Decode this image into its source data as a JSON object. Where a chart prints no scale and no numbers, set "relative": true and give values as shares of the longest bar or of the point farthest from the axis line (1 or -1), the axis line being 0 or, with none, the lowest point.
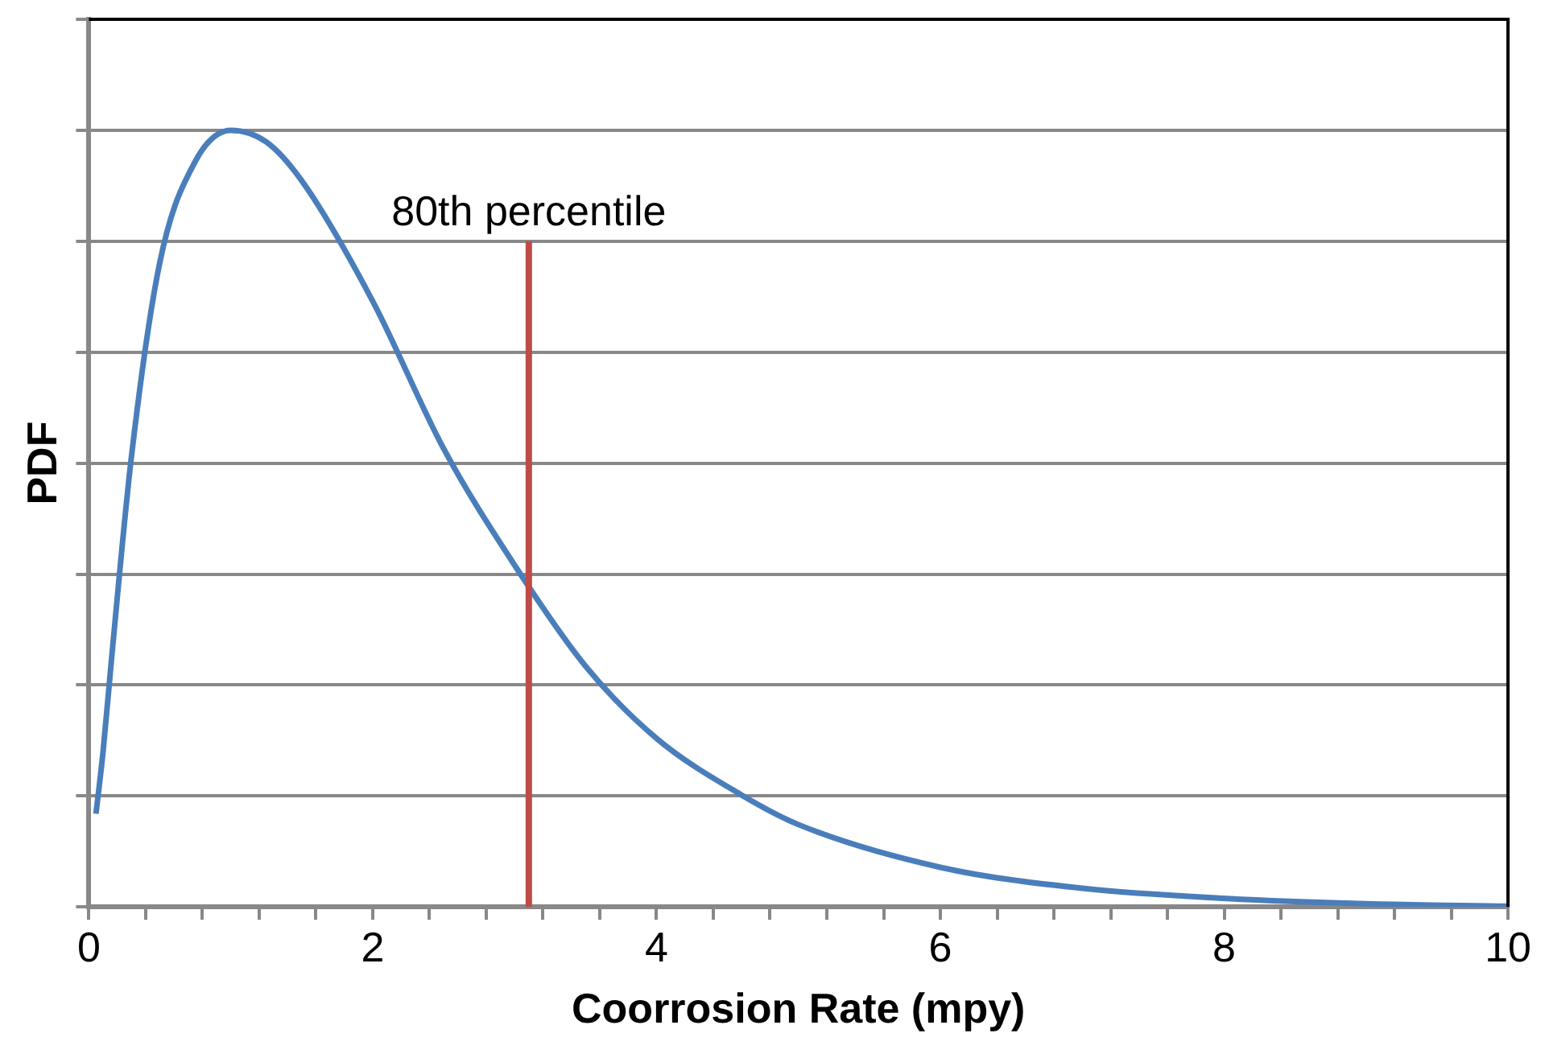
{
  "chart_data": {
    "type": "line",
    "relative": true,
    "xlabel": "Coorrosion Rate (mpy)",
    "ylabel": "PDF",
    "grid": "y",
    "marker": "none",
    "line_style": "solid",
    "xlim": [
      0,
      10
    ],
    "xticks": [
      0,
      {
        "value": 0.4,
        "label": null
      },
      {
        "value": 0.8,
        "label": null
      },
      {
        "value": 1.2,
        "label": null
      },
      {
        "value": 1.6,
        "label": null
      },
      2,
      {
        "value": 2.4,
        "label": null
      },
      {
        "value": 2.8,
        "label": null
      },
      {
        "value": 3.2,
        "label": null
      },
      {
        "value": 3.6,
        "label": null
      },
      4,
      {
        "value": 4.4,
        "label": null
      },
      {
        "value": 4.8,
        "label": null
      },
      {
        "value": 5.2,
        "label": null
      },
      {
        "value": 5.6,
        "label": null
      },
      6,
      {
        "value": 6.4,
        "label": null
      },
      {
        "value": 6.8,
        "label": null
      },
      {
        "value": 7.2,
        "label": null
      },
      {
        "value": 7.6,
        "label": null
      },
      8,
      {
        "value": 8.4,
        "label": null
      },
      {
        "value": 8.8,
        "label": null
      },
      {
        "value": 9.2,
        "label": null
      },
      {
        "value": 9.6,
        "label": null
      },
      10
    ],
    "x": [
      0.05,
      0.1,
      0.16,
      0.3,
      0.5,
      0.75,
      1.0,
      1.25,
      1.5,
      2.0,
      2.5,
      3.0,
      3.5,
      4.0,
      4.6,
      5.0,
      6.0,
      7.0,
      8.0,
      9.0,
      10.0
    ],
    "series": [
      {
        "color": "#4a7ebb",
        "values": [
          0.12,
          0.2,
          0.32,
          0.58,
          0.83,
          0.96,
          1.0,
          0.985,
          0.935,
          0.78,
          0.59,
          0.44,
          0.31,
          0.217,
          0.144,
          0.106,
          0.051,
          0.024,
          0.011,
          0.004,
          0.001
        ]
      }
    ],
    "ref_lines": [
      {
        "axis": "x",
        "value": 3.1,
        "label": "80th percentile",
        "color": "#be4b48"
      }
    ]
  }
}
